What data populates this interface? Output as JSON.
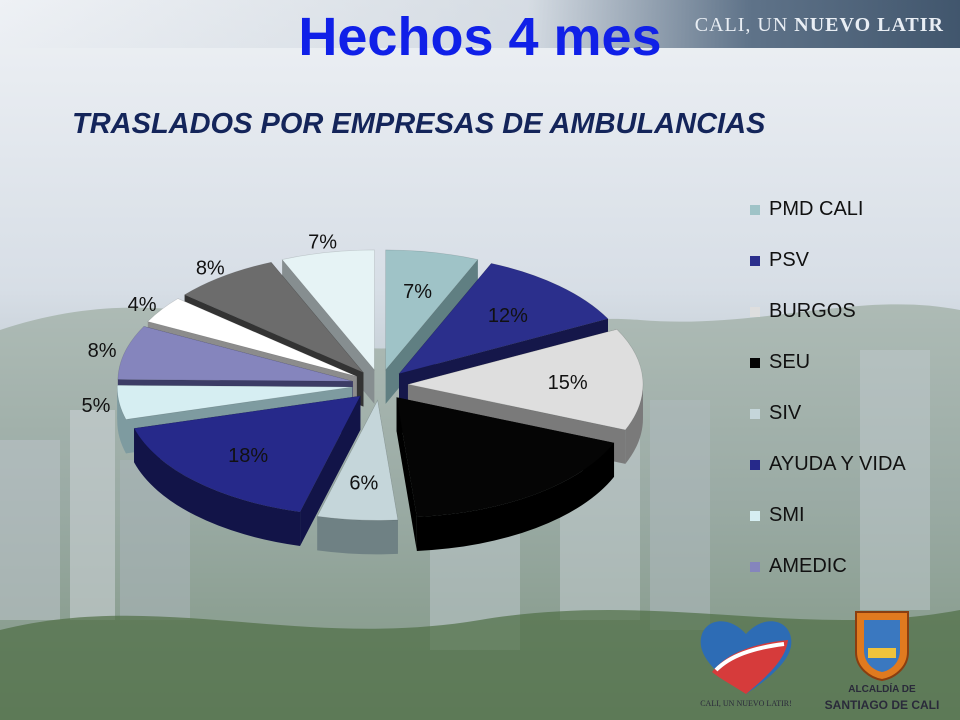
{
  "header": {
    "title": "Hechos 4 mes",
    "subtitle": "TRASLADOS POR EMPRESAS DE AMBULANCIAS",
    "brand_plain": "CALI, UN",
    "brand_bold": "NUEVO LATIR"
  },
  "chart_data": {
    "type": "pie",
    "title": "",
    "legend_position": "right",
    "slices": [
      {
        "label": "PMD CALI",
        "value": 7,
        "display": "7%",
        "color": "#9fc3c7",
        "side": "#607f82"
      },
      {
        "label": "PSV",
        "value": 12,
        "display": "12%",
        "color": "#2b2f8c",
        "side": "#15174a"
      },
      {
        "label": "BURGOS",
        "value": 15,
        "display": "15%",
        "color": "#dedede",
        "side": "#7a7a7a"
      },
      {
        "label": "SEU",
        "value": 19,
        "display": "",
        "color": "#050505",
        "side": "#000000"
      },
      {
        "label": "SIV",
        "value": 6,
        "display": "6%",
        "color": "#c5d6da",
        "side": "#6f8184"
      },
      {
        "label": "AYUDA Y VIDA",
        "value": 18,
        "display": "18%",
        "color": "#26298a",
        "side": "#121448"
      },
      {
        "label": "SMI",
        "value": 5,
        "display": "5%",
        "color": "#d6eef2",
        "side": "#7e9ba0"
      },
      {
        "label": "AMEDIC",
        "value": 8,
        "display": "8%",
        "color": "#8585bd",
        "side": "#3c3c66"
      },
      {
        "label": "",
        "value": 4,
        "display": "4%",
        "color": "#ffffff",
        "side": "#8c8c8c"
      },
      {
        "label": "",
        "value": 8,
        "display": "8%",
        "color": "#6c6c6c",
        "side": "#333333"
      },
      {
        "label": "",
        "value": 7,
        "display": "7%",
        "color": "#e6f3f5",
        "side": "#868e90"
      }
    ]
  },
  "logos": {
    "heart_caption": "CALI, UN NUEVO LATIR!",
    "seal_line1": "ALCALDÍA DE",
    "seal_line2": "SANTIAGO DE CALI"
  }
}
